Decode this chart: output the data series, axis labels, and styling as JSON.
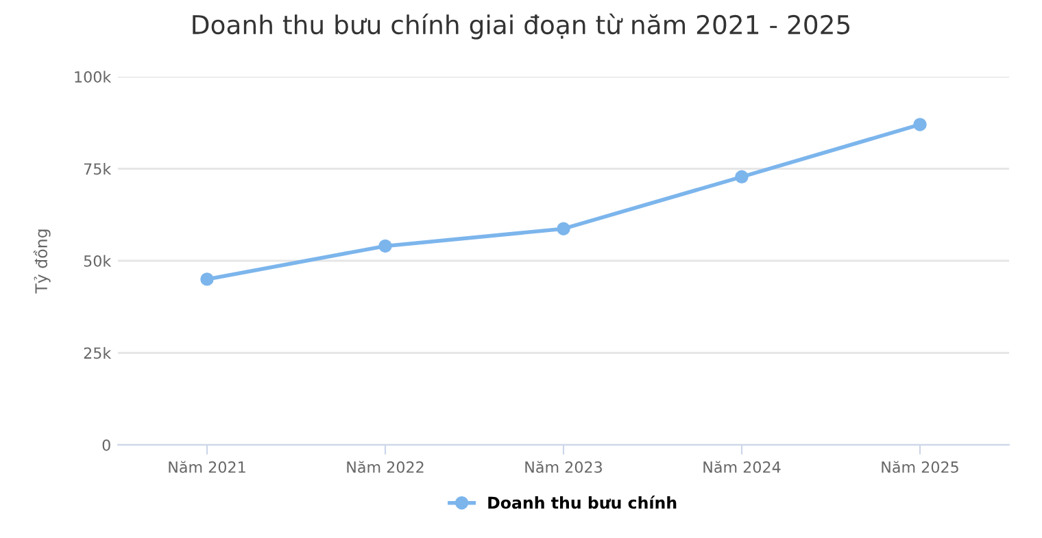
{
  "chart_data": {
    "type": "line",
    "title": "Doanh thu bưu chính giai đoạn từ năm 2021 - 2025",
    "ylabel": "Tỷ đồng",
    "categories": [
      "Năm 2021",
      "Năm 2022",
      "Năm 2023",
      "Năm 2024",
      "Năm 2025"
    ],
    "series": [
      {
        "name": "Doanh thu bưu chính",
        "color": "#7cb5ec",
        "values": [
          45000,
          54000,
          58700,
          72800,
          87000
        ]
      }
    ],
    "ylim": [
      0,
      100000
    ],
    "yticks": [
      {
        "value": 0,
        "label": "0"
      },
      {
        "value": 25000,
        "label": "25k"
      },
      {
        "value": 50000,
        "label": "50k"
      },
      {
        "value": 75000,
        "label": "75k"
      },
      {
        "value": 100000,
        "label": "100k"
      }
    ],
    "grid": "y",
    "legend": "bottom",
    "marker": "circle",
    "line_style": "solid"
  }
}
